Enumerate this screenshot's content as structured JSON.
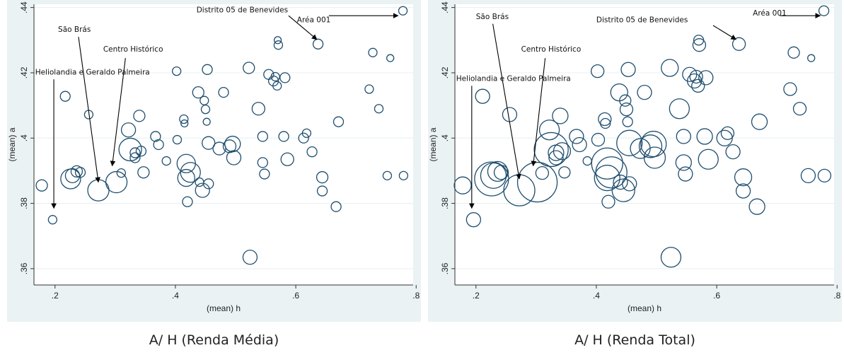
{
  "colors": {
    "background": "#eaf2f3",
    "plot_region": "#ffffff",
    "marker": "#1f4e6e",
    "grid": "#eaf2f3"
  },
  "chart_data": [
    {
      "type": "scatter",
      "title": "A/ H (Renda Média)",
      "xlabel": "(mean) h",
      "ylabel": "(mean) a",
      "xlim": [
        0.165,
        0.795
      ],
      "ylim": [
        0.355,
        0.441
      ],
      "xticks": [
        0.2,
        0.4,
        0.6,
        0.8
      ],
      "xtick_labels": [
        ".2",
        ".4",
        ".6",
        ".8"
      ],
      "yticks": [
        0.36,
        0.38,
        0.4,
        0.42,
        0.44
      ],
      "ytick_labels": [
        ".36",
        ".38",
        ".4",
        ".42",
        ".44"
      ],
      "grid": "horizontal",
      "marker": "hollow circle, size weighted",
      "points": [
        {
          "x": 0.178,
          "y": 0.3855,
          "r": 8
        },
        {
          "x": 0.196,
          "y": 0.375,
          "r": 6
        },
        {
          "x": 0.217,
          "y": 0.4128,
          "r": 7
        },
        {
          "x": 0.226,
          "y": 0.3875,
          "r": 14
        },
        {
          "x": 0.229,
          "y": 0.3885,
          "r": 10
        },
        {
          "x": 0.236,
          "y": 0.3898,
          "r": 8
        },
        {
          "x": 0.242,
          "y": 0.3895,
          "r": 7
        },
        {
          "x": 0.256,
          "y": 0.4072,
          "r": 6
        },
        {
          "x": 0.272,
          "y": 0.384,
          "r": 15
        },
        {
          "x": 0.302,
          "y": 0.3865,
          "r": 15
        },
        {
          "x": 0.31,
          "y": 0.3893,
          "r": 6
        },
        {
          "x": 0.322,
          "y": 0.4025,
          "r": 10
        },
        {
          "x": 0.325,
          "y": 0.3965,
          "r": 16
        },
        {
          "x": 0.333,
          "y": 0.3955,
          "r": 7
        },
        {
          "x": 0.333,
          "y": 0.394,
          "r": 7
        },
        {
          "x": 0.34,
          "y": 0.4068,
          "r": 8
        },
        {
          "x": 0.343,
          "y": 0.396,
          "r": 7
        },
        {
          "x": 0.347,
          "y": 0.3895,
          "r": 8
        },
        {
          "x": 0.367,
          "y": 0.4005,
          "r": 7
        },
        {
          "x": 0.372,
          "y": 0.398,
          "r": 7
        },
        {
          "x": 0.385,
          "y": 0.393,
          "r": 6
        },
        {
          "x": 0.402,
          "y": 0.4205,
          "r": 6
        },
        {
          "x": 0.403,
          "y": 0.3995,
          "r": 6
        },
        {
          "x": 0.414,
          "y": 0.4058,
          "r": 6
        },
        {
          "x": 0.415,
          "y": 0.4045,
          "r": 5
        },
        {
          "x": 0.418,
          "y": 0.3922,
          "r": 13
        },
        {
          "x": 0.418,
          "y": 0.3878,
          "r": 12
        },
        {
          "x": 0.42,
          "y": 0.3805,
          "r": 7
        },
        {
          "x": 0.425,
          "y": 0.3895,
          "r": 14
        },
        {
          "x": 0.438,
          "y": 0.414,
          "r": 8
        },
        {
          "x": 0.44,
          "y": 0.3865,
          "r": 6
        },
        {
          "x": 0.445,
          "y": 0.384,
          "r": 10
        },
        {
          "x": 0.448,
          "y": 0.4115,
          "r": 6
        },
        {
          "x": 0.45,
          "y": 0.4088,
          "r": 6
        },
        {
          "x": 0.452,
          "y": 0.405,
          "r": 5
        },
        {
          "x": 0.453,
          "y": 0.421,
          "r": 7
        },
        {
          "x": 0.455,
          "y": 0.3985,
          "r": 9
        },
        {
          "x": 0.455,
          "y": 0.386,
          "r": 7
        },
        {
          "x": 0.473,
          "y": 0.3968,
          "r": 9
        },
        {
          "x": 0.48,
          "y": 0.414,
          "r": 7
        },
        {
          "x": 0.49,
          "y": 0.3975,
          "r": 9
        },
        {
          "x": 0.495,
          "y": 0.3982,
          "r": 11
        },
        {
          "x": 0.497,
          "y": 0.394,
          "r": 10
        },
        {
          "x": 0.522,
          "y": 0.4215,
          "r": 8
        },
        {
          "x": 0.524,
          "y": 0.3635,
          "r": 10
        },
        {
          "x": 0.538,
          "y": 0.409,
          "r": 9
        },
        {
          "x": 0.545,
          "y": 0.4005,
          "r": 7
        },
        {
          "x": 0.545,
          "y": 0.3925,
          "r": 7
        },
        {
          "x": 0.548,
          "y": 0.389,
          "r": 7
        },
        {
          "x": 0.555,
          "y": 0.4195,
          "r": 7
        },
        {
          "x": 0.563,
          "y": 0.4175,
          "r": 7
        },
        {
          "x": 0.566,
          "y": 0.4188,
          "r": 6
        },
        {
          "x": 0.569,
          "y": 0.416,
          "r": 6
        },
        {
          "x": 0.57,
          "y": 0.43,
          "r": 5
        },
        {
          "x": 0.571,
          "y": 0.4285,
          "r": 6
        },
        {
          "x": 0.58,
          "y": 0.4005,
          "r": 7
        },
        {
          "x": 0.582,
          "y": 0.4185,
          "r": 7
        },
        {
          "x": 0.586,
          "y": 0.3935,
          "r": 9
        },
        {
          "x": 0.613,
          "y": 0.4,
          "r": 7
        },
        {
          "x": 0.618,
          "y": 0.4015,
          "r": 6
        },
        {
          "x": 0.627,
          "y": 0.3958,
          "r": 7
        },
        {
          "x": 0.637,
          "y": 0.4288,
          "r": 7
        },
        {
          "x": 0.644,
          "y": 0.388,
          "r": 8
        },
        {
          "x": 0.644,
          "y": 0.3838,
          "r": 7
        },
        {
          "x": 0.667,
          "y": 0.379,
          "r": 7
        },
        {
          "x": 0.671,
          "y": 0.405,
          "r": 7
        },
        {
          "x": 0.728,
          "y": 0.4262,
          "r": 6
        },
        {
          "x": 0.738,
          "y": 0.409,
          "r": 6
        },
        {
          "x": 0.722,
          "y": 0.415,
          "r": 6
        },
        {
          "x": 0.752,
          "y": 0.3885,
          "r": 6
        },
        {
          "x": 0.757,
          "y": 0.4245,
          "r": 5
        },
        {
          "x": 0.778,
          "y": 0.439,
          "r": 6
        },
        {
          "x": 0.779,
          "y": 0.3885,
          "r": 6
        }
      ],
      "annotations": [
        {
          "text": "São Brás",
          "text_x": 0.205,
          "text_y": 0.4325,
          "arrow_from": [
            0.239,
            0.431
          ],
          "arrow_to": [
            0.272,
            0.3865
          ]
        },
        {
          "text": "Centro Histórico",
          "text_x": 0.28,
          "text_y": 0.4265,
          "arrow_from": [
            0.317,
            0.4245
          ],
          "arrow_to": [
            0.295,
            0.3915
          ]
        },
        {
          "text": "Heliolandia e Geraldo Palmeira",
          "text_x": 0.167,
          "text_y": 0.4195,
          "arrow_from": [
            0.198,
            0.418
          ],
          "arrow_to": [
            0.198,
            0.3785
          ]
        },
        {
          "text": "Distrito 05 de Benevides",
          "text_x": 0.435,
          "text_y": 0.4385,
          "arrow_from": [
            0.588,
            0.4375
          ],
          "arrow_to": [
            0.635,
            0.4302
          ]
        },
        {
          "text": "Aréa 001",
          "text_x": 0.602,
          "text_y": 0.4355,
          "arrow_from": [
            0.655,
            0.4375
          ],
          "arrow_to": [
            0.77,
            0.4375
          ]
        }
      ]
    },
    {
      "type": "scatter",
      "title": "A/ H (Renda Total)",
      "xlabel": "(mean) h",
      "ylabel": "(mean) a",
      "xlim": [
        0.165,
        0.795
      ],
      "ylim": [
        0.355,
        0.441
      ],
      "xticks": [
        0.2,
        0.4,
        0.6,
        0.8
      ],
      "xtick_labels": [
        ".2",
        ".4",
        ".6",
        ".8"
      ],
      "yticks": [
        0.36,
        0.38,
        0.4,
        0.42,
        0.44
      ],
      "ytick_labels": [
        ".36",
        ".38",
        ".4",
        ".42",
        ".44"
      ],
      "grid": "horizontal",
      "marker": "hollow circle, size weighted",
      "points": [
        {
          "x": 0.178,
          "y": 0.3855,
          "r": 12
        },
        {
          "x": 0.196,
          "y": 0.375,
          "r": 10
        },
        {
          "x": 0.211,
          "y": 0.4128,
          "r": 10
        },
        {
          "x": 0.226,
          "y": 0.3875,
          "r": 24
        },
        {
          "x": 0.229,
          "y": 0.3885,
          "r": 18
        },
        {
          "x": 0.236,
          "y": 0.3898,
          "r": 14
        },
        {
          "x": 0.242,
          "y": 0.3895,
          "r": 10
        },
        {
          "x": 0.256,
          "y": 0.4072,
          "r": 10
        },
        {
          "x": 0.272,
          "y": 0.384,
          "r": 22
        },
        {
          "x": 0.302,
          "y": 0.3865,
          "r": 28
        },
        {
          "x": 0.31,
          "y": 0.3893,
          "r": 9
        },
        {
          "x": 0.322,
          "y": 0.4025,
          "r": 14
        },
        {
          "x": 0.325,
          "y": 0.3965,
          "r": 24
        },
        {
          "x": 0.333,
          "y": 0.3955,
          "r": 11
        },
        {
          "x": 0.333,
          "y": 0.394,
          "r": 10
        },
        {
          "x": 0.34,
          "y": 0.4068,
          "r": 11
        },
        {
          "x": 0.343,
          "y": 0.396,
          "r": 12
        },
        {
          "x": 0.347,
          "y": 0.3895,
          "r": 8
        },
        {
          "x": 0.367,
          "y": 0.4005,
          "r": 10
        },
        {
          "x": 0.372,
          "y": 0.398,
          "r": 10
        },
        {
          "x": 0.385,
          "y": 0.393,
          "r": 6
        },
        {
          "x": 0.402,
          "y": 0.4205,
          "r": 9
        },
        {
          "x": 0.403,
          "y": 0.3995,
          "r": 9
        },
        {
          "x": 0.414,
          "y": 0.4058,
          "r": 9
        },
        {
          "x": 0.415,
          "y": 0.4045,
          "r": 7
        },
        {
          "x": 0.418,
          "y": 0.3922,
          "r": 22
        },
        {
          "x": 0.418,
          "y": 0.3878,
          "r": 18
        },
        {
          "x": 0.42,
          "y": 0.3805,
          "r": 9
        },
        {
          "x": 0.425,
          "y": 0.3895,
          "r": 22
        },
        {
          "x": 0.438,
          "y": 0.414,
          "r": 12
        },
        {
          "x": 0.44,
          "y": 0.3865,
          "r": 10
        },
        {
          "x": 0.445,
          "y": 0.384,
          "r": 16
        },
        {
          "x": 0.448,
          "y": 0.4115,
          "r": 8
        },
        {
          "x": 0.45,
          "y": 0.4088,
          "r": 9
        },
        {
          "x": 0.452,
          "y": 0.405,
          "r": 7
        },
        {
          "x": 0.453,
          "y": 0.421,
          "r": 10
        },
        {
          "x": 0.455,
          "y": 0.3985,
          "r": 18
        },
        {
          "x": 0.455,
          "y": 0.386,
          "r": 10
        },
        {
          "x": 0.473,
          "y": 0.3968,
          "r": 14
        },
        {
          "x": 0.48,
          "y": 0.414,
          "r": 10
        },
        {
          "x": 0.49,
          "y": 0.3975,
          "r": 16
        },
        {
          "x": 0.495,
          "y": 0.3982,
          "r": 18
        },
        {
          "x": 0.497,
          "y": 0.394,
          "r": 15
        },
        {
          "x": 0.522,
          "y": 0.4215,
          "r": 12
        },
        {
          "x": 0.524,
          "y": 0.3635,
          "r": 14
        },
        {
          "x": 0.538,
          "y": 0.409,
          "r": 14
        },
        {
          "x": 0.545,
          "y": 0.4005,
          "r": 10
        },
        {
          "x": 0.545,
          "y": 0.3925,
          "r": 11
        },
        {
          "x": 0.548,
          "y": 0.389,
          "r": 10
        },
        {
          "x": 0.555,
          "y": 0.4195,
          "r": 10
        },
        {
          "x": 0.563,
          "y": 0.4175,
          "r": 10
        },
        {
          "x": 0.566,
          "y": 0.4188,
          "r": 9
        },
        {
          "x": 0.569,
          "y": 0.416,
          "r": 9
        },
        {
          "x": 0.57,
          "y": 0.43,
          "r": 7
        },
        {
          "x": 0.571,
          "y": 0.4285,
          "r": 9
        },
        {
          "x": 0.58,
          "y": 0.4005,
          "r": 11
        },
        {
          "x": 0.582,
          "y": 0.4185,
          "r": 10
        },
        {
          "x": 0.586,
          "y": 0.3935,
          "r": 14
        },
        {
          "x": 0.613,
          "y": 0.4,
          "r": 11
        },
        {
          "x": 0.618,
          "y": 0.4015,
          "r": 9
        },
        {
          "x": 0.627,
          "y": 0.3958,
          "r": 10
        },
        {
          "x": 0.637,
          "y": 0.4288,
          "r": 9
        },
        {
          "x": 0.644,
          "y": 0.388,
          "r": 12
        },
        {
          "x": 0.644,
          "y": 0.3838,
          "r": 10
        },
        {
          "x": 0.667,
          "y": 0.379,
          "r": 11
        },
        {
          "x": 0.671,
          "y": 0.405,
          "r": 11
        },
        {
          "x": 0.728,
          "y": 0.4262,
          "r": 8
        },
        {
          "x": 0.738,
          "y": 0.409,
          "r": 9
        },
        {
          "x": 0.722,
          "y": 0.415,
          "r": 9
        },
        {
          "x": 0.752,
          "y": 0.3885,
          "r": 10
        },
        {
          "x": 0.757,
          "y": 0.4245,
          "r": 5
        },
        {
          "x": 0.778,
          "y": 0.439,
          "r": 7
        },
        {
          "x": 0.779,
          "y": 0.3885,
          "r": 9
        }
      ],
      "annotations": [
        {
          "text": "São Brás",
          "text_x": 0.2,
          "text_y": 0.4365,
          "arrow_from": [
            0.228,
            0.435
          ],
          "arrow_to": [
            0.272,
            0.3875
          ]
        },
        {
          "text": "Centro Histórico",
          "text_x": 0.275,
          "text_y": 0.4265,
          "arrow_from": [
            0.315,
            0.4245
          ],
          "arrow_to": [
            0.295,
            0.3915
          ]
        },
        {
          "text": "Heliolandia e Geraldo Palmeira",
          "text_x": 0.167,
          "text_y": 0.4175,
          "arrow_from": [
            0.193,
            0.416
          ],
          "arrow_to": [
            0.193,
            0.3785
          ]
        },
        {
          "text": "Distrito 05 de Benevides",
          "text_x": 0.4,
          "text_y": 0.4355,
          "arrow_from": [
            0.594,
            0.4345
          ],
          "arrow_to": [
            0.632,
            0.4302
          ]
        },
        {
          "text": "Aréa 001",
          "text_x": 0.66,
          "text_y": 0.4375,
          "arrow_from": [
            0.705,
            0.4375
          ],
          "arrow_to": [
            0.772,
            0.4375
          ]
        }
      ]
    }
  ]
}
